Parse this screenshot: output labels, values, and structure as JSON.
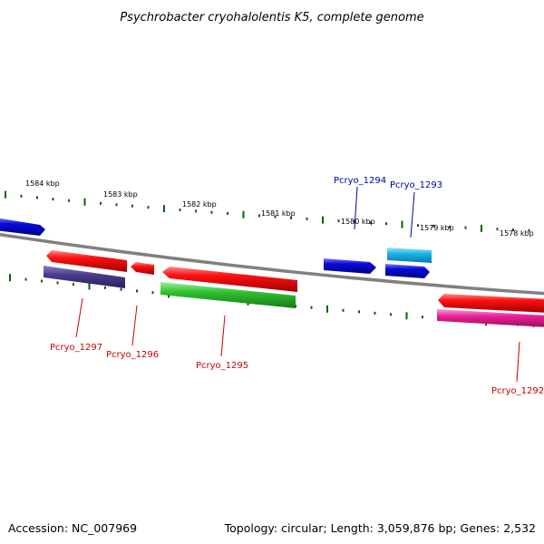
{
  "title": "Psychrobacter cryohalolentis K5, complete genome",
  "footer": {
    "accession": "Accession: NC_007969",
    "summary": "Topology: circular; Length: 3,059,876 bp; Genes: 2,532"
  },
  "ruler": {
    "labels": [
      "1584 kbp",
      "1583 kbp",
      "1582 kbp",
      "1581 kbp",
      "1580 kbp",
      "1579 kbp",
      "1578 kbp"
    ]
  },
  "colors": {
    "backbone": "#808080",
    "tick": "#006400",
    "reverse_label": "#cc0000",
    "forward_label": "#0000aa"
  },
  "genes": [
    {
      "id": "Pcryo_1294",
      "color": "#0a0adc",
      "strand": "forward"
    },
    {
      "id": "Pcryo_1293",
      "color": "#0a0adc",
      "strand": "forward"
    },
    {
      "id": "Pcryo_1297",
      "color": "#ff0000",
      "strand": "reverse"
    },
    {
      "id": "Pcryo_1296",
      "color": "#ff0000",
      "strand": "reverse"
    },
    {
      "id": "Pcryo_1295",
      "color": "#ff0000",
      "strand": "reverse"
    },
    {
      "id": "Pcryo_1292",
      "color": "#ff0000",
      "strand": "reverse"
    }
  ],
  "cog_blocks": [
    {
      "gene": "Pcryo_1297",
      "color": "#4b3c8c"
    },
    {
      "gene": "Pcryo_1295",
      "color": "#2fbf2f"
    },
    {
      "gene": "Pcryo_1293",
      "color": "#1ab4e6"
    },
    {
      "gene": "Pcryo_1292",
      "color": "#e61e96"
    }
  ]
}
